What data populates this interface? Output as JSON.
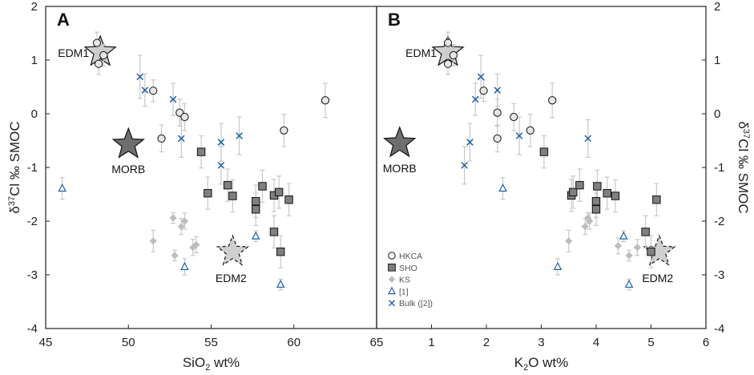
{
  "chart_data": [
    {
      "type": "scatter",
      "panel_label": "A",
      "xlabel_main": "SiO",
      "xlabel_sub": "2",
      "xlabel_tail": " wt%",
      "ylabel": "δ37Cl ‰ SMOC",
      "xlim": [
        45,
        65
      ],
      "ylim": [
        -4,
        2
      ],
      "xticks": [
        "45",
        "50",
        "55",
        "60",
        "65"
      ],
      "yticks": [
        "2",
        "1",
        "0",
        "-1",
        "-2",
        "-3",
        "-4"
      ],
      "annotations": [
        {
          "name": "EDM1",
          "label": "EDM1",
          "x": 48.3,
          "y": 1.15,
          "style": "light-solid"
        },
        {
          "name": "MORB",
          "label": "MORB",
          "x": 50.0,
          "y": -0.57,
          "style": "dark-solid"
        },
        {
          "name": "EDM2",
          "label": "EDM2",
          "x": 56.3,
          "y": -2.57,
          "style": "light-dashed"
        }
      ],
      "series": [
        {
          "name": "HKCA",
          "marker": "circle",
          "points": [
            {
              "x": 48.1,
              "y": 1.32,
              "err": 0.2
            },
            {
              "x": 48.2,
              "y": 0.93,
              "err": 0.2
            },
            {
              "x": 48.5,
              "y": 1.09,
              "err": 0.2
            },
            {
              "x": 51.5,
              "y": 0.43,
              "err": 0.2
            },
            {
              "x": 52.0,
              "y": -0.46,
              "err": 0.25
            },
            {
              "x": 53.1,
              "y": 0.02,
              "err": 0.25
            },
            {
              "x": 53.4,
              "y": -0.06,
              "err": 0.25
            },
            {
              "x": 59.4,
              "y": -0.31,
              "err": 0.3
            },
            {
              "x": 61.9,
              "y": 0.25,
              "err": 0.32
            }
          ]
        },
        {
          "name": "SHO",
          "marker": "square",
          "points": [
            {
              "x": 54.4,
              "y": -0.71,
              "err": 0.3
            },
            {
              "x": 54.8,
              "y": -1.48,
              "err": 0.3
            },
            {
              "x": 56.0,
              "y": -1.33,
              "err": 0.3
            },
            {
              "x": 56.3,
              "y": -1.53,
              "err": 0.3
            },
            {
              "x": 57.7,
              "y": -1.63,
              "err": 0.3
            },
            {
              "x": 57.7,
              "y": -1.78,
              "err": 0.3
            },
            {
              "x": 58.1,
              "y": -1.35,
              "err": 0.3
            },
            {
              "x": 58.8,
              "y": -2.2,
              "err": 0.3
            },
            {
              "x": 58.8,
              "y": -1.52,
              "err": 0.3
            },
            {
              "x": 59.1,
              "y": -1.46,
              "err": 0.3
            },
            {
              "x": 59.2,
              "y": -2.57,
              "err": 0.3
            },
            {
              "x": 59.7,
              "y": -1.6,
              "err": 0.3
            }
          ]
        },
        {
          "name": "KS",
          "marker": "diamond",
          "points": [
            {
              "x": 51.5,
              "y": -2.37,
              "err": 0.2
            },
            {
              "x": 52.7,
              "y": -1.94,
              "err": 0.1
            },
            {
              "x": 52.8,
              "y": -2.64,
              "err": 0.1
            },
            {
              "x": 53.2,
              "y": -2.1,
              "err": 0.15
            },
            {
              "x": 53.4,
              "y": -2.0,
              "err": 0.15
            },
            {
              "x": 53.9,
              "y": -2.49,
              "err": 0.15
            },
            {
              "x": 54.1,
              "y": -2.44,
              "err": 0.15
            }
          ]
        },
        {
          "name": "[1]",
          "marker": "triangle",
          "points": [
            {
              "x": 46.0,
              "y": -1.39,
              "err": 0.2
            },
            {
              "x": 53.4,
              "y": -2.85,
              "err": 0.15
            },
            {
              "x": 57.7,
              "y": -2.28,
              "err": 0.1
            },
            {
              "x": 59.2,
              "y": -3.18,
              "err": 0.1
            }
          ]
        },
        {
          "name": "Bulk ([2])",
          "marker": "x",
          "points": [
            {
              "x": 50.7,
              "y": 0.69,
              "err": 0.4
            },
            {
              "x": 51.0,
              "y": 0.44,
              "err": 0.3
            },
            {
              "x": 52.7,
              "y": 0.27,
              "err": 0.3
            },
            {
              "x": 53.2,
              "y": -0.46,
              "err": 0.35
            },
            {
              "x": 55.6,
              "y": -0.53,
              "err": 0.35
            },
            {
              "x": 55.6,
              "y": -0.96,
              "err": 0.35
            },
            {
              "x": 56.7,
              "y": -0.41,
              "err": 0.35
            }
          ]
        }
      ]
    },
    {
      "type": "scatter",
      "panel_label": "B",
      "xlabel_main": "K",
      "xlabel_sub": "2",
      "xlabel_tail": "O wt%",
      "ylabel": "δ37Cl ‰ SMOC",
      "xlim": [
        0,
        6
      ],
      "ylim": [
        -4,
        2
      ],
      "xticks": [
        "1",
        "2",
        "3",
        "4",
        "5",
        "6"
      ],
      "yticks": [
        "2",
        "1",
        "0",
        "-1",
        "-2",
        "-3",
        "-4"
      ],
      "annotations": [
        {
          "name": "EDM1",
          "label": "EDM1",
          "x": 1.3,
          "y": 1.15,
          "style": "light-solid"
        },
        {
          "name": "MORB",
          "label": "MORB",
          "x": 0.42,
          "y": -0.55,
          "style": "dark-solid"
        },
        {
          "name": "EDM2",
          "label": "EDM2",
          "x": 5.15,
          "y": -2.57,
          "style": "light-dashed"
        }
      ],
      "series": [
        {
          "name": "HKCA",
          "marker": "circle",
          "points": [
            {
              "x": 1.3,
              "y": 1.32,
              "err": 0.2
            },
            {
              "x": 1.3,
              "y": 0.93,
              "err": 0.2
            },
            {
              "x": 1.4,
              "y": 1.09,
              "err": 0.2
            },
            {
              "x": 1.95,
              "y": 0.43,
              "err": 0.2
            },
            {
              "x": 2.2,
              "y": -0.46,
              "err": 0.25
            },
            {
              "x": 2.2,
              "y": 0.02,
              "err": 0.25
            },
            {
              "x": 2.5,
              "y": -0.06,
              "err": 0.25
            },
            {
              "x": 2.8,
              "y": -0.31,
              "err": 0.3
            },
            {
              "x": 3.2,
              "y": 0.25,
              "err": 0.32
            }
          ]
        },
        {
          "name": "SHO",
          "marker": "square",
          "points": [
            {
              "x": 3.05,
              "y": -0.71,
              "err": 0.3
            },
            {
              "x": 3.55,
              "y": -1.52,
              "err": 0.3
            },
            {
              "x": 3.58,
              "y": -1.46,
              "err": 0.3
            },
            {
              "x": 3.7,
              "y": -1.33,
              "err": 0.3
            },
            {
              "x": 4.0,
              "y": -1.63,
              "err": 0.3
            },
            {
              "x": 4.0,
              "y": -1.78,
              "err": 0.3
            },
            {
              "x": 4.02,
              "y": -1.35,
              "err": 0.3
            },
            {
              "x": 4.2,
              "y": -1.48,
              "err": 0.3
            },
            {
              "x": 4.35,
              "y": -1.53,
              "err": 0.3
            },
            {
              "x": 4.9,
              "y": -2.2,
              "err": 0.3
            },
            {
              "x": 5.0,
              "y": -2.57,
              "err": 0.3
            },
            {
              "x": 5.1,
              "y": -1.6,
              "err": 0.3
            }
          ]
        },
        {
          "name": "KS",
          "marker": "diamond",
          "points": [
            {
              "x": 3.5,
              "y": -2.37,
              "err": 0.2
            },
            {
              "x": 3.8,
              "y": -2.1,
              "err": 0.15
            },
            {
              "x": 3.85,
              "y": -1.94,
              "err": 0.1
            },
            {
              "x": 3.88,
              "y": -2.0,
              "err": 0.15
            },
            {
              "x": 4.4,
              "y": -2.46,
              "err": 0.15
            },
            {
              "x": 4.6,
              "y": -2.64,
              "err": 0.1
            },
            {
              "x": 4.75,
              "y": -2.49,
              "err": 0.15
            }
          ]
        },
        {
          "name": "[1]",
          "marker": "triangle",
          "points": [
            {
              "x": 2.3,
              "y": -1.39,
              "err": 0.2
            },
            {
              "x": 3.3,
              "y": -2.85,
              "err": 0.15
            },
            {
              "x": 4.5,
              "y": -2.28,
              "err": 0.1
            },
            {
              "x": 4.6,
              "y": -3.18,
              "err": 0.1
            }
          ]
        },
        {
          "name": "Bulk ([2])",
          "marker": "x",
          "points": [
            {
              "x": 1.6,
              "y": -0.96,
              "err": 0.35
            },
            {
              "x": 1.7,
              "y": -0.53,
              "err": 0.35
            },
            {
              "x": 1.8,
              "y": 0.27,
              "err": 0.3
            },
            {
              "x": 1.9,
              "y": 0.69,
              "err": 0.4
            },
            {
              "x": 2.2,
              "y": 0.44,
              "err": 0.3
            },
            {
              "x": 2.6,
              "y": -0.41,
              "err": 0.35
            },
            {
              "x": 3.85,
              "y": -0.46,
              "err": 0.35
            }
          ]
        }
      ]
    }
  ],
  "legend": [
    {
      "label": "HKCA",
      "marker": "circle"
    },
    {
      "label": "SHO",
      "marker": "square"
    },
    {
      "label": "KS",
      "marker": "diamond"
    },
    {
      "label": "[1]",
      "marker": "triangle"
    },
    {
      "label": "Bulk ([2])",
      "marker": "x"
    }
  ],
  "colors": {
    "axis": "#222222",
    "errorbar": "#c8c8c8",
    "hkca_fill": "#e6e6e6",
    "sho_fill": "#808080",
    "ks_fill": "#bdbdbd",
    "blue": "#1f5fa8",
    "star_light": "#cfcfcf",
    "star_dark": "#6e6e6e"
  }
}
